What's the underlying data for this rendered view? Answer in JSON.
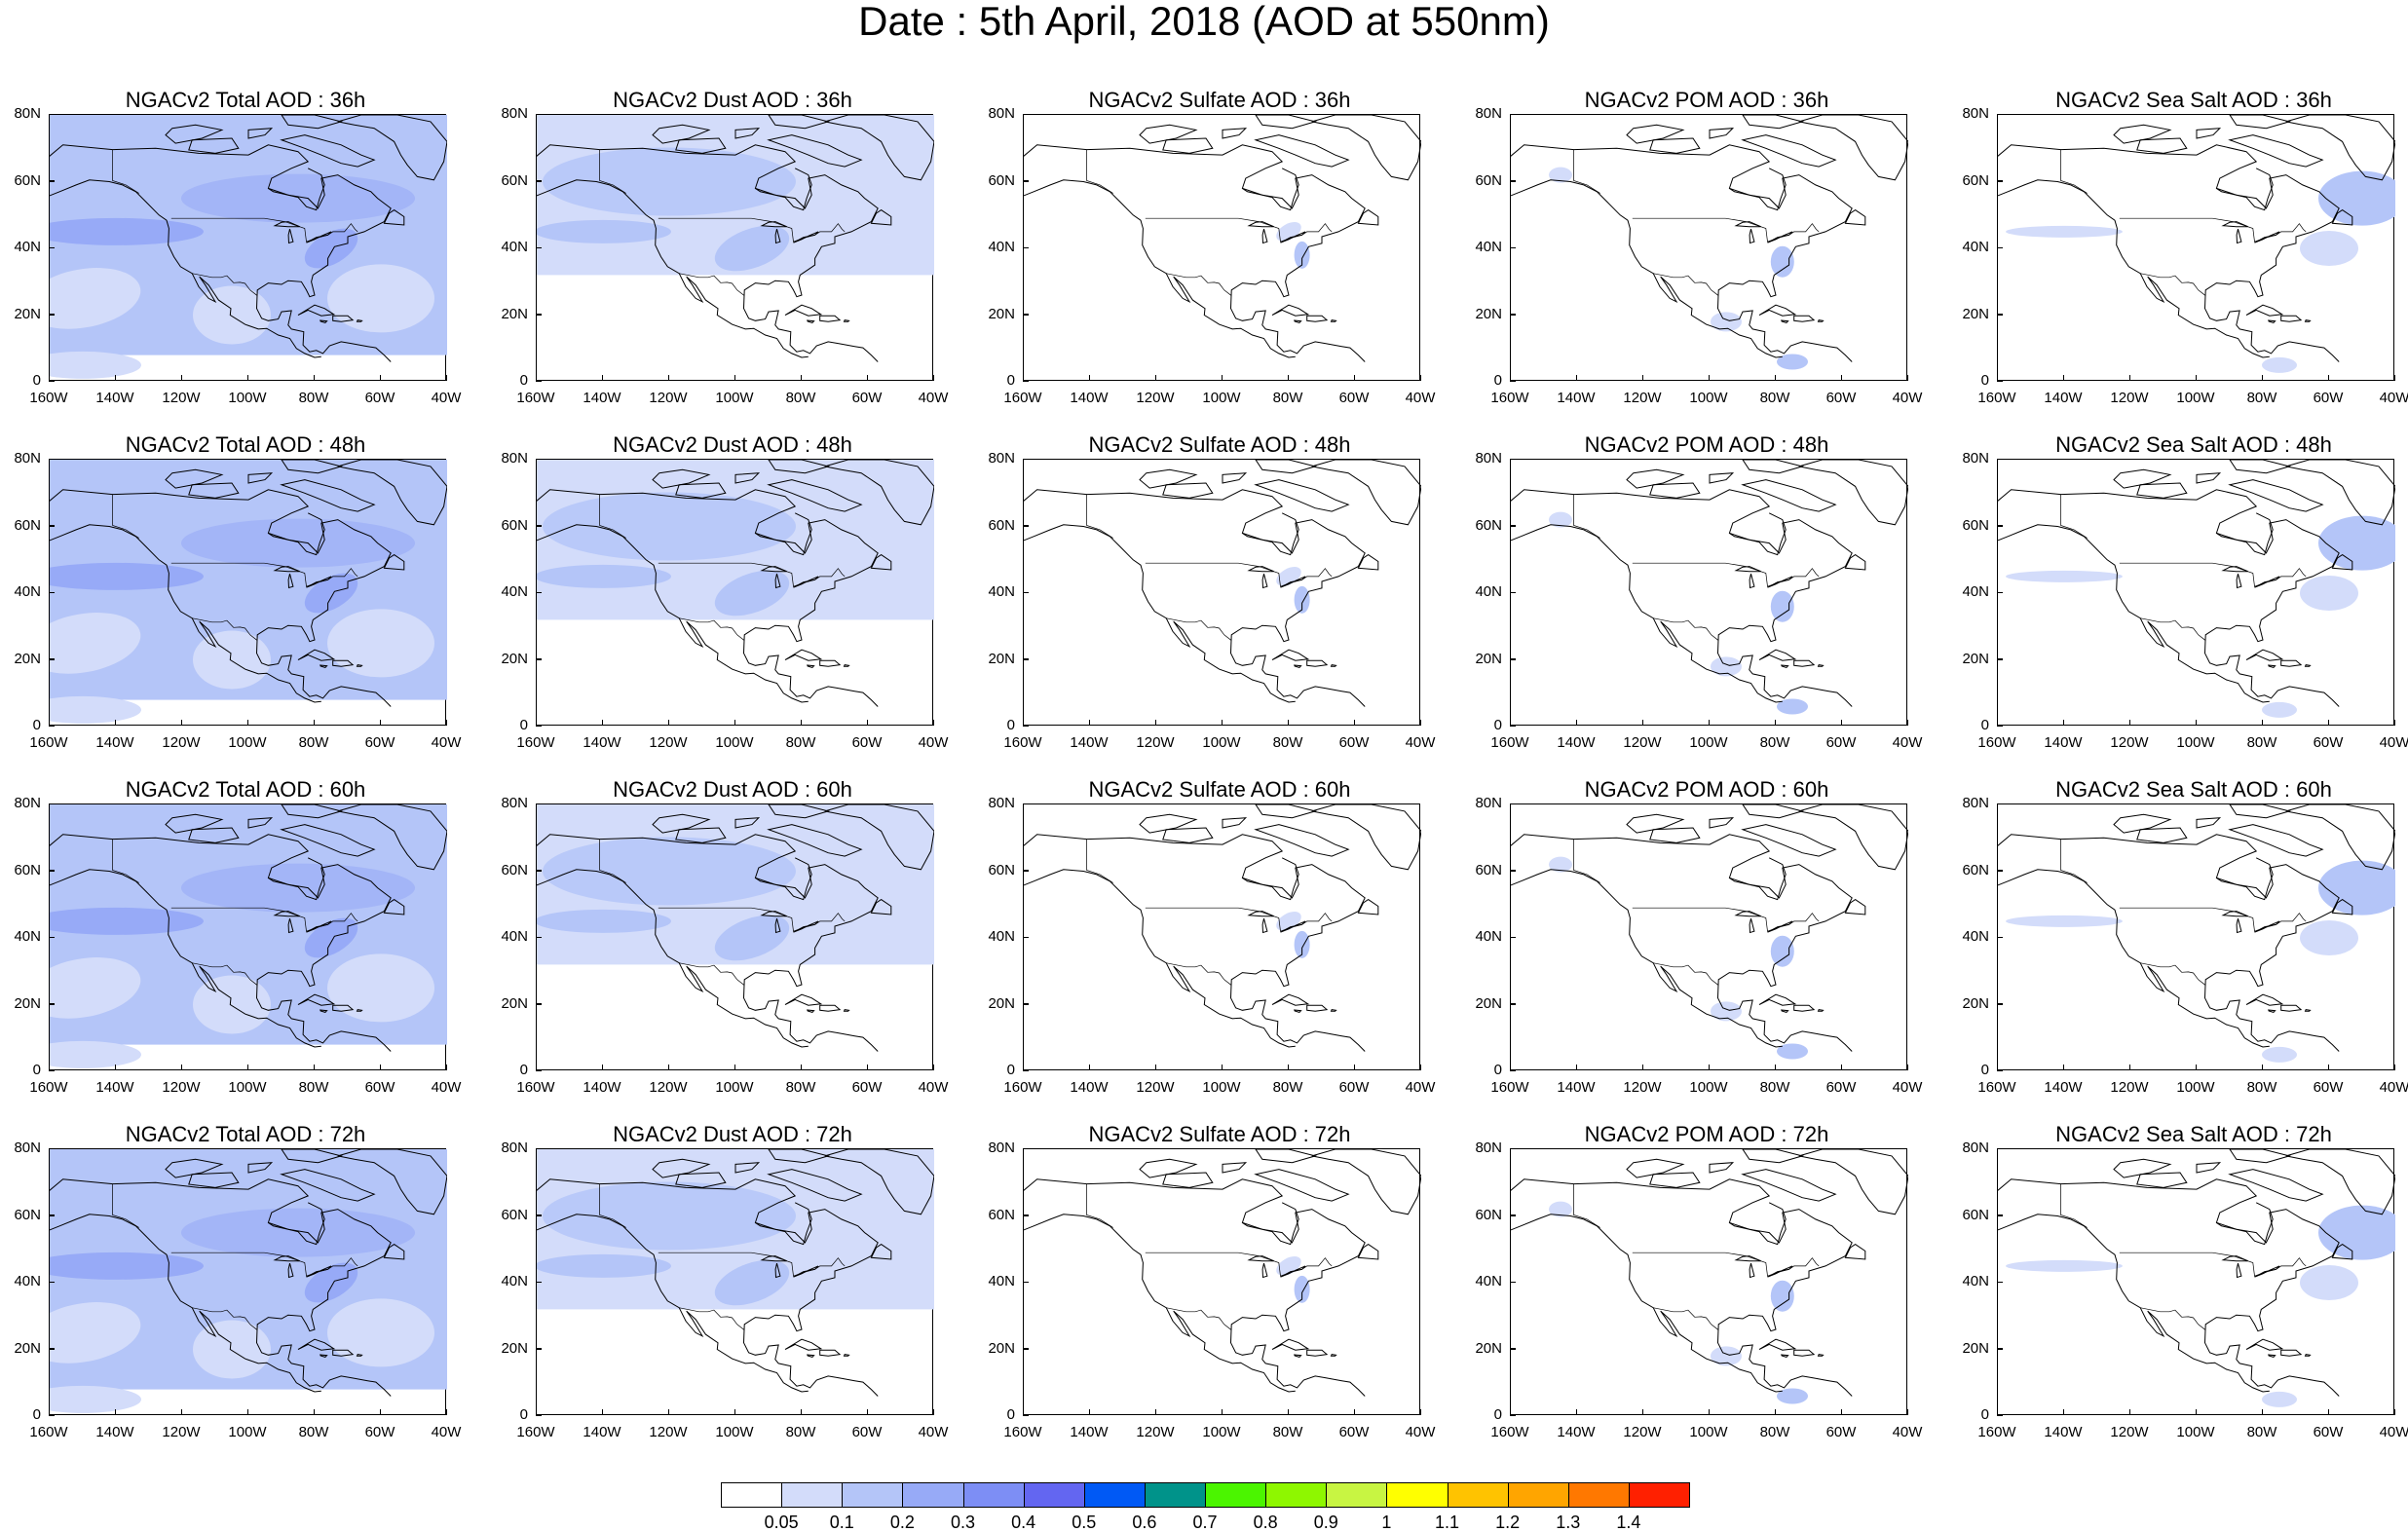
{
  "main_title": "Date : 5th April, 2018 (AOD at 550nm)",
  "lat_ticks": [
    "80N",
    "60N",
    "40N",
    "20N",
    "0"
  ],
  "lon_ticks": [
    "160W",
    "140W",
    "120W",
    "100W",
    "80W",
    "60W",
    "40W"
  ],
  "panels": [
    {
      "title": "NGACv2 Total AOD : 36h",
      "species": "total"
    },
    {
      "title": "NGACv2 Dust AOD : 36h",
      "species": "dust"
    },
    {
      "title": "NGACv2 Sulfate AOD : 36h",
      "species": "sulfate"
    },
    {
      "title": "NGACv2 POM AOD : 36h",
      "species": "pom"
    },
    {
      "title": "NGACv2 Sea Salt AOD : 36h",
      "species": "seasalt"
    },
    {
      "title": "NGACv2 Total AOD : 48h",
      "species": "total"
    },
    {
      "title": "NGACv2 Dust AOD : 48h",
      "species": "dust"
    },
    {
      "title": "NGACv2 Sulfate AOD : 48h",
      "species": "sulfate"
    },
    {
      "title": "NGACv2 POM AOD : 48h",
      "species": "pom"
    },
    {
      "title": "NGACv2 Sea Salt AOD : 48h",
      "species": "seasalt"
    },
    {
      "title": "NGACv2 Total AOD : 60h",
      "species": "total"
    },
    {
      "title": "NGACv2 Dust AOD : 60h",
      "species": "dust"
    },
    {
      "title": "NGACv2 Sulfate AOD : 60h",
      "species": "sulfate"
    },
    {
      "title": "NGACv2 POM AOD : 60h",
      "species": "pom"
    },
    {
      "title": "NGACv2 Sea Salt AOD : 60h",
      "species": "seasalt"
    },
    {
      "title": "NGACv2 Total AOD : 72h",
      "species": "total"
    },
    {
      "title": "NGACv2 Dust AOD : 72h",
      "species": "dust"
    },
    {
      "title": "NGACv2 Sulfate AOD : 72h",
      "species": "sulfate"
    },
    {
      "title": "NGACv2 POM AOD : 72h",
      "species": "pom"
    },
    {
      "title": "NGACv2 Sea Salt  AOD : 72h",
      "species": "seasalt"
    }
  ],
  "colorbar": {
    "labels": [
      "0.05",
      "0.1",
      "0.2",
      "0.3",
      "0.4",
      "0.5",
      "0.6",
      "0.7",
      "0.8",
      "0.9",
      "1",
      "1.1",
      "1.2",
      "1.3",
      "1.4"
    ],
    "colors": [
      "#ffffff",
      "#d3dcfa",
      "#b4c5f8",
      "#97aaf7",
      "#7d8ef5",
      "#6366f1",
      "#0059f5",
      "#00938a",
      "#4bf500",
      "#8ef700",
      "#c8f542",
      "#ffff00",
      "#ffc300",
      "#ffa500",
      "#ff7800",
      "#ff2000"
    ]
  },
  "colors": {
    "aod_low": "#d3dcfa",
    "aod_mid": "#b4c5f8",
    "aod_high": "#97aaf7",
    "coastline": "#000000"
  }
}
